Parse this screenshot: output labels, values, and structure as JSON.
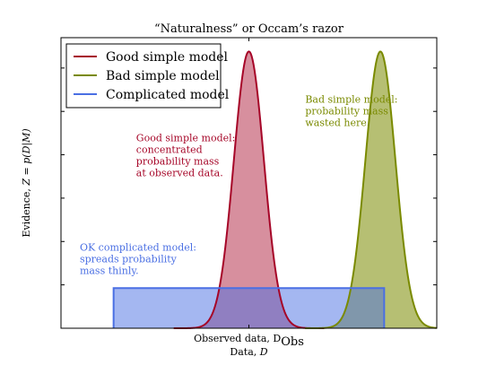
{
  "chart_data": {
    "type": "area",
    "title": "“Naturalness” or Occam’s razor",
    "xlabel": "Data, D",
    "ylabel": "Evidence, Z = p(D|M)",
    "xlim": [
      0,
      1
    ],
    "ylim": [
      0,
      1.05
    ],
    "grid": false,
    "legend_placement": "top-left",
    "x_ticks": [
      {
        "x": 0.5,
        "label": "Observed data, D",
        "sub": "Obs"
      }
    ],
    "series": [
      {
        "name": "Good simple model",
        "kind": "gaussian",
        "mean": 0.5,
        "sigma": 0.04,
        "peak": 1.0,
        "line_color": "#a60628",
        "fill_color": "#a60628",
        "fill_alpha": 0.45
      },
      {
        "name": "Bad simple model",
        "kind": "gaussian",
        "mean": 0.85,
        "sigma": 0.04,
        "peak": 1.0,
        "line_color": "#7a8a00",
        "fill_color": "#7a8a00",
        "fill_alpha": 0.55
      },
      {
        "name": "Complicated model",
        "kind": "box",
        "x_start": 0.14,
        "x_end": 0.86,
        "value": 0.145,
        "line_color": "#4a6fe3",
        "fill_color": "#4a6fe3",
        "fill_alpha": 0.5
      }
    ],
    "annotations": [
      {
        "lines": [
          "Good simple model:",
          "concentrated",
          "probability mass",
          "at observed data."
        ],
        "x": 0.2,
        "y": 0.675,
        "color": "#a60628"
      },
      {
        "lines": [
          "Bad simple model:",
          "probability mass",
          "wasted here."
        ],
        "x": 0.65,
        "y": 0.815,
        "color": "#7a8a00"
      },
      {
        "lines": [
          "OK complicated model:",
          "spreads probability",
          "mass thinly."
        ],
        "x": 0.05,
        "y": 0.28,
        "color": "#4a6fe3"
      }
    ]
  }
}
